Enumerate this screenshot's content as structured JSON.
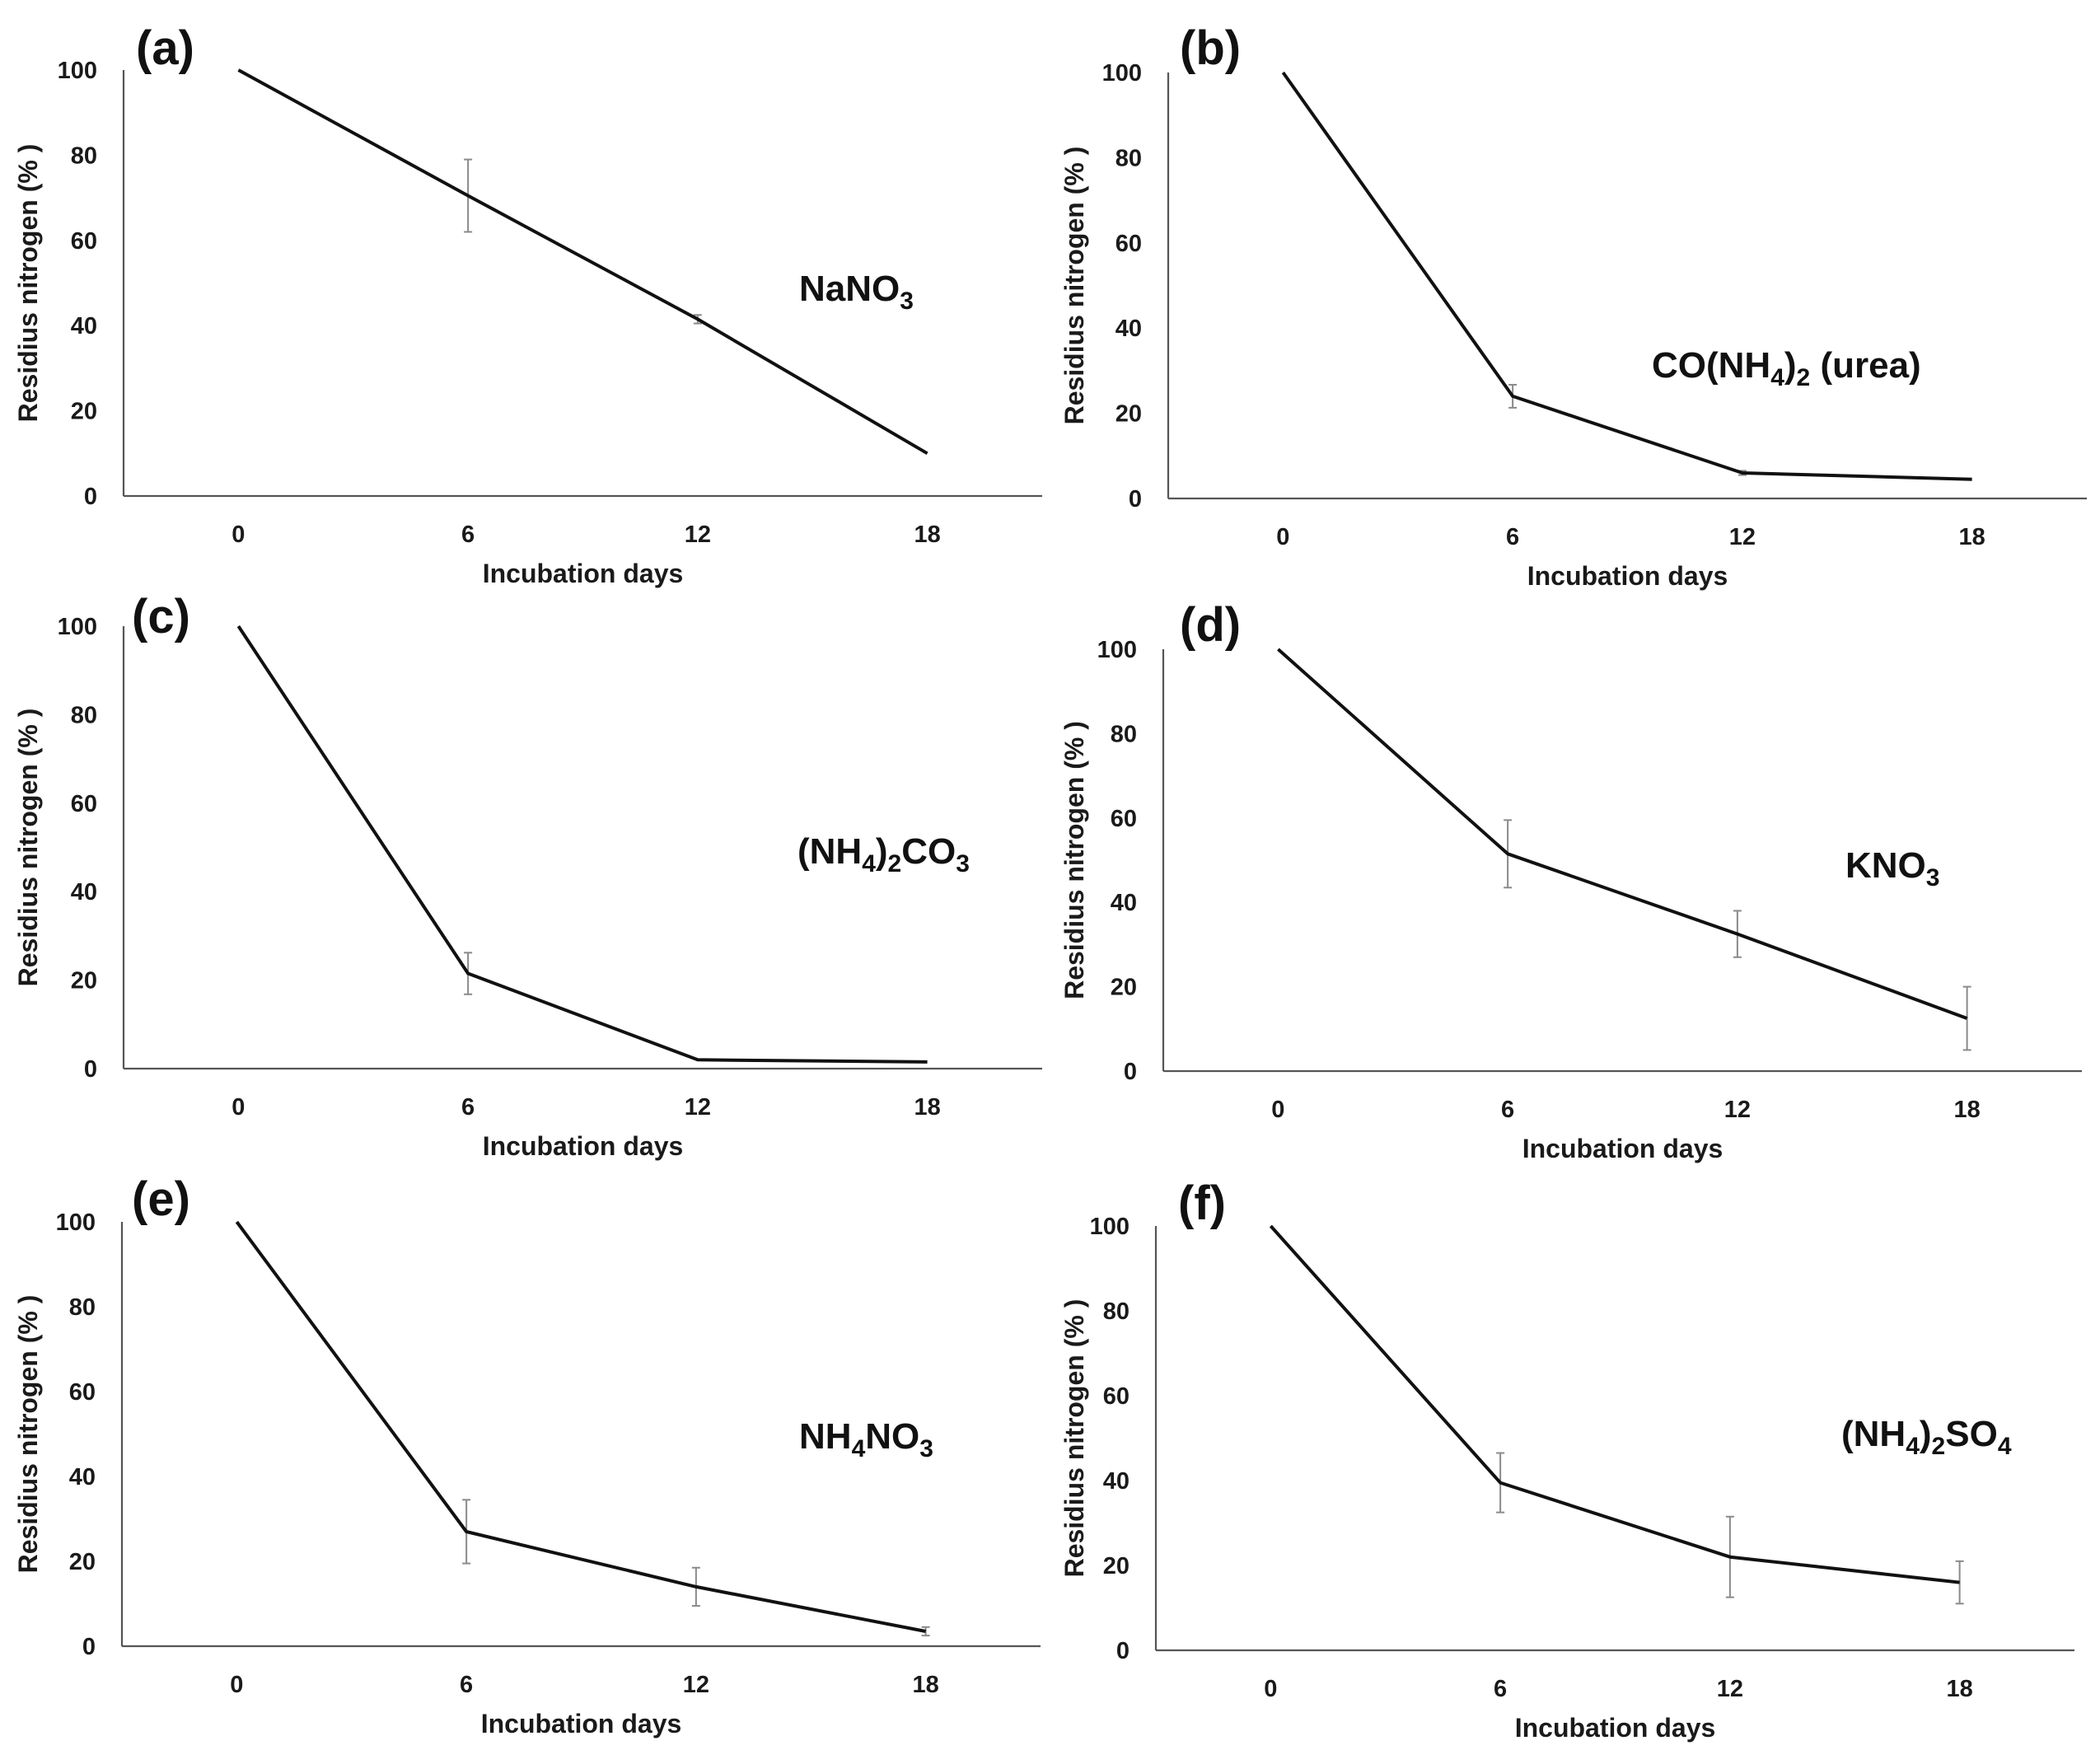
{
  "chart_data": [
    {
      "panel": "(a)",
      "type": "line",
      "annotation": {
        "parts": [
          {
            "t": "NaNO"
          },
          {
            "t": "3",
            "sub": true
          }
        ]
      },
      "x": [
        0,
        6,
        12,
        18
      ],
      "x_tick_labels": [
        "0",
        "6",
        "12",
        "18"
      ],
      "values": [
        100,
        70.5,
        41.5,
        10
      ],
      "errors": [
        0,
        8.5,
        1,
        0
      ],
      "xlabel": "Incubation days",
      "ylabel": "Residius nitrogen (% )",
      "ylim": [
        0,
        100
      ],
      "yticks": [
        0,
        20,
        40,
        60,
        80,
        100
      ]
    },
    {
      "panel": "(b)",
      "type": "line",
      "annotation": {
        "parts": [
          {
            "t": "CO(NH"
          },
          {
            "t": "4",
            "sub": true
          },
          {
            "t": ")"
          },
          {
            "t": "2",
            "sub": true
          },
          {
            "t": " (urea)"
          }
        ]
      },
      "x": [
        0,
        6,
        12,
        18
      ],
      "x_tick_labels": [
        "0",
        "6",
        "12",
        "18"
      ],
      "values": [
        100,
        24,
        6,
        4.5
      ],
      "errors": [
        0,
        2.7,
        0.5,
        0
      ],
      "xlabel": "Incubation days",
      "ylabel": "Residius nitrogen (% )",
      "ylim": [
        0,
        100
      ],
      "yticks": [
        0,
        20,
        40,
        60,
        80,
        100
      ]
    },
    {
      "panel": "(c)",
      "type": "line",
      "annotation": {
        "parts": [
          {
            "t": "(NH"
          },
          {
            "t": "4",
            "sub": true
          },
          {
            "t": ")"
          },
          {
            "t": "2",
            "sub": true
          },
          {
            "t": "CO"
          },
          {
            "t": "3",
            "sub": true
          }
        ]
      },
      "x": [
        0,
        6,
        12,
        18
      ],
      "x_tick_labels": [
        "0",
        "6",
        "12",
        "18"
      ],
      "values": [
        100,
        21.5,
        2,
        1.5
      ],
      "errors": [
        0,
        4.7,
        0,
        0
      ],
      "xlabel": "Incubation days",
      "ylabel": "Residius nitrogen (% )",
      "ylim": [
        0,
        100
      ],
      "yticks": [
        0,
        20,
        40,
        60,
        80,
        100
      ]
    },
    {
      "panel": "(d)",
      "type": "line",
      "annotation": {
        "parts": [
          {
            "t": "KNO"
          },
          {
            "t": "3",
            "sub": true
          }
        ]
      },
      "x": [
        0,
        6,
        12,
        18
      ],
      "x_tick_labels": [
        "0",
        "6",
        "12",
        "18"
      ],
      "values": [
        100,
        51.5,
        32.5,
        12.5
      ],
      "errors": [
        0,
        8,
        5.5,
        7.5
      ],
      "xlabel": "Incubation days",
      "ylabel": "Residius nitrogen (% )",
      "ylim": [
        0,
        100
      ],
      "yticks": [
        0,
        20,
        40,
        60,
        80,
        100
      ]
    },
    {
      "panel": "(e)",
      "type": "line",
      "annotation": {
        "parts": [
          {
            "t": "NH"
          },
          {
            "t": "4",
            "sub": true
          },
          {
            "t": "NO"
          },
          {
            "t": "3",
            "sub": true
          }
        ]
      },
      "x": [
        0,
        6,
        12,
        18
      ],
      "x_tick_labels": [
        "0",
        "6",
        "12",
        "18"
      ],
      "values": [
        100,
        27,
        14,
        3.5
      ],
      "errors": [
        0,
        7.5,
        4.5,
        1
      ],
      "xlabel": "Incubation days",
      "ylabel": "Residius nitrogen (% )",
      "ylim": [
        0,
        100
      ],
      "yticks": [
        0,
        20,
        40,
        60,
        80,
        100
      ]
    },
    {
      "panel": "(f)",
      "type": "line",
      "annotation": {
        "parts": [
          {
            "t": "(NH"
          },
          {
            "t": "4",
            "sub": true
          },
          {
            "t": ")"
          },
          {
            "t": "2",
            "sub": true
          },
          {
            "t": "SO"
          },
          {
            "t": "4",
            "sub": true
          }
        ]
      },
      "x": [
        0,
        6,
        12,
        18
      ],
      "x_tick_labels": [
        "0",
        "6",
        "12",
        "18"
      ],
      "values": [
        100,
        39.5,
        22,
        16
      ],
      "errors": [
        0,
        7,
        9.5,
        5
      ],
      "xlabel": "Incubation days",
      "ylabel": "Residius nitrogen (% )",
      "ylim": [
        0,
        100
      ],
      "yticks": [
        0,
        20,
        40,
        60,
        80,
        100
      ]
    }
  ]
}
